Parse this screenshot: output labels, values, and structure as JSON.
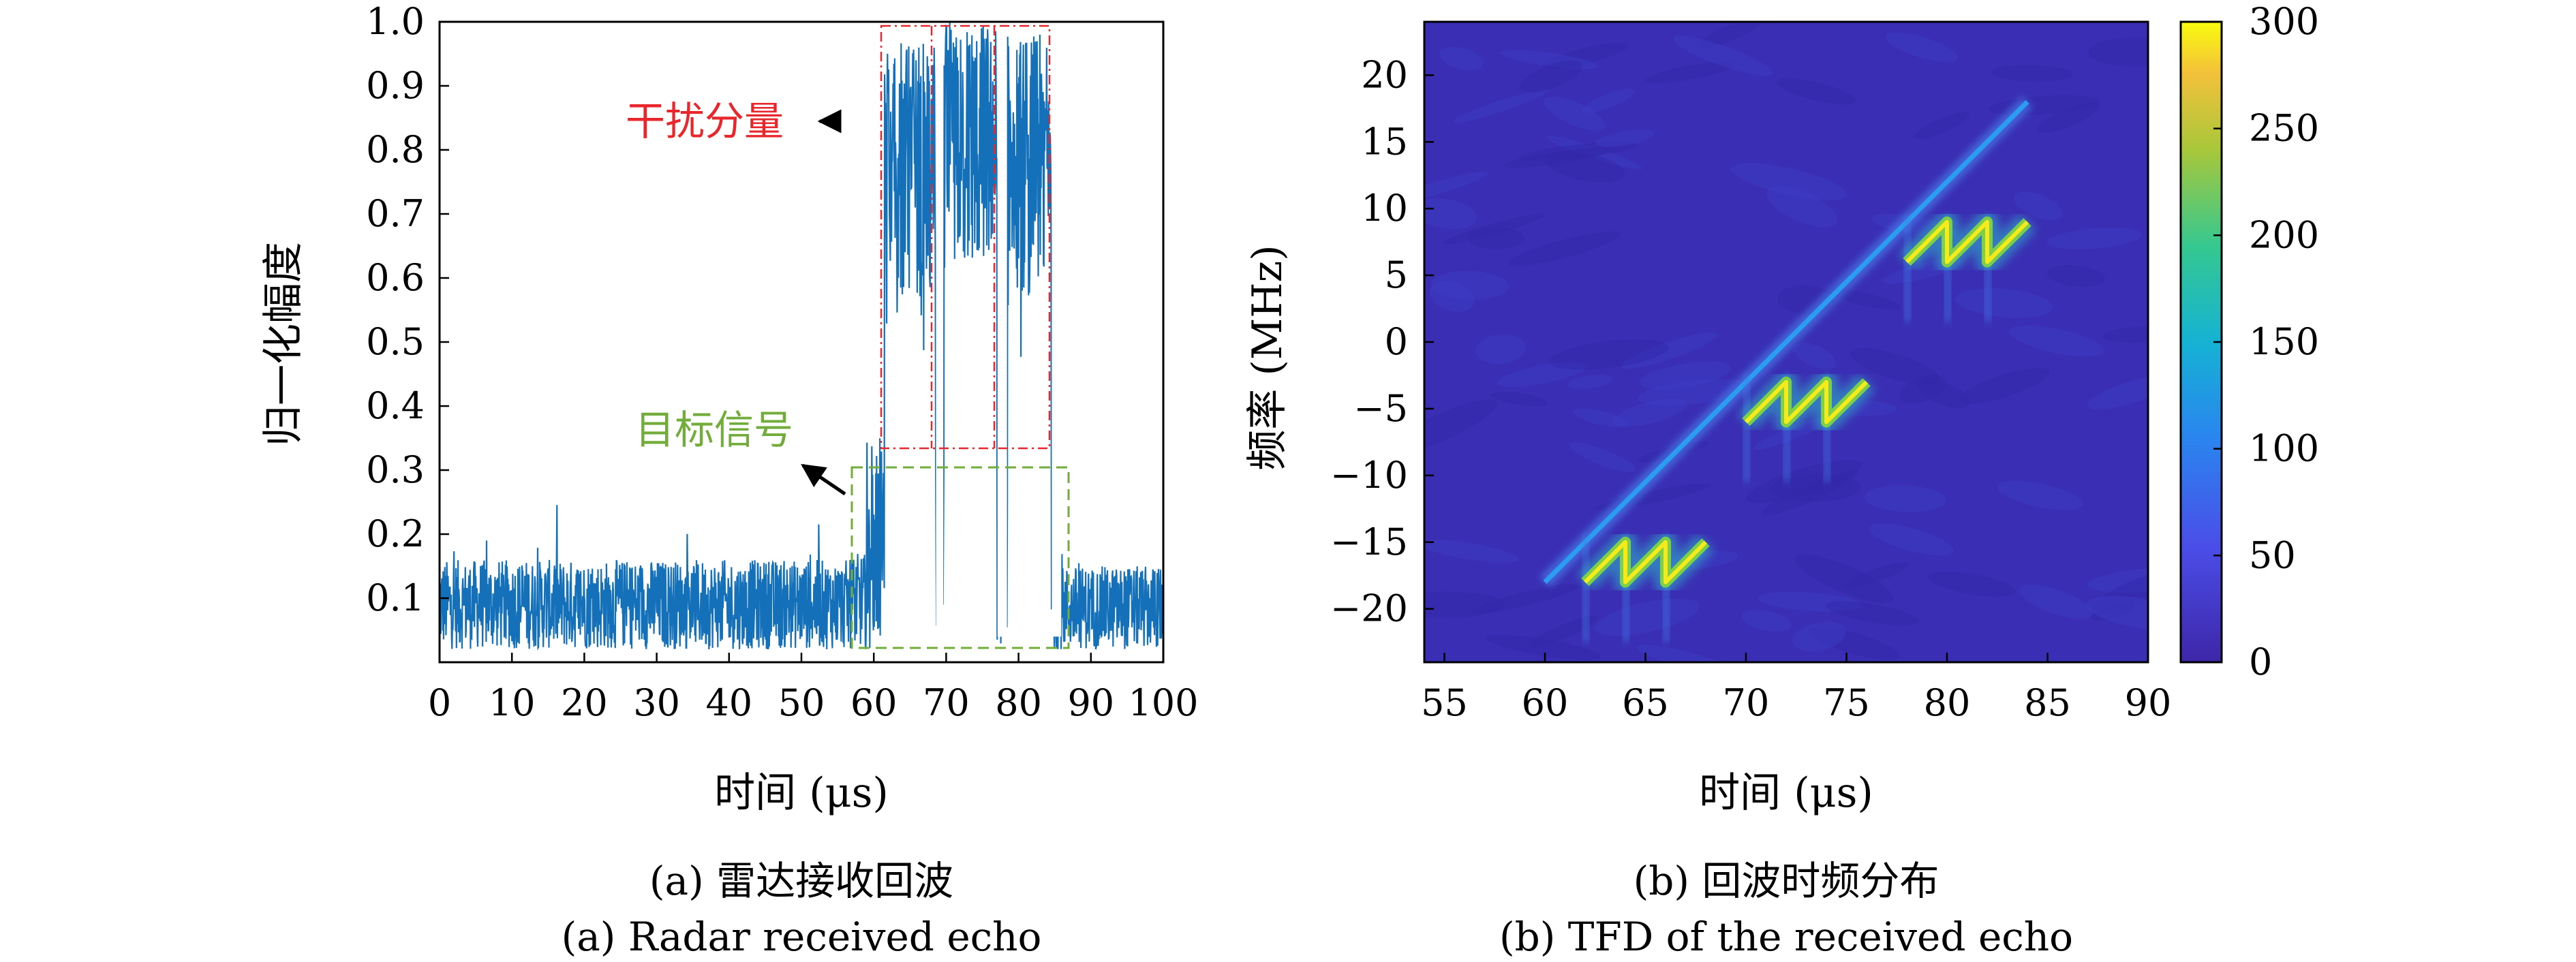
{
  "colors": {
    "signal": "#1470b8",
    "interference": "#e8262b",
    "target": "#72ac3a",
    "tfd_background": "#3a2fb4"
  },
  "chart_data": [
    {
      "type": "line",
      "xlabel": "时间 (μs)",
      "ylabel": "归一化幅度",
      "xlim": [
        0,
        100
      ],
      "ylim": [
        0,
        1.0
      ],
      "x_ticks": [
        "0",
        "10",
        "20",
        "30",
        "40",
        "50",
        "60",
        "70",
        "80",
        "90",
        "100"
      ],
      "y_ticks": [
        "0.1",
        "0.2",
        "0.3",
        "0.4",
        "0.5",
        "0.6",
        "0.7",
        "0.8",
        "0.9",
        "1.0"
      ],
      "grid": false,
      "noise_level": {
        "x_range": [
          0,
          57
        ],
        "mean": 0.1,
        "max": 0.26
      },
      "target_signal": {
        "x_range": [
          59,
          84
        ],
        "level": 0.25
      },
      "interference_pulses": [
        {
          "x_range": [
            61.5,
            68.5
          ],
          "level_range": [
            0.45,
            0.97
          ]
        },
        {
          "x_range": [
            69.7,
            77
          ],
          "level_range": [
            0.5,
            1.0
          ]
        },
        {
          "x_range": [
            78.5,
            84.5
          ],
          "level_range": [
            0.45,
            0.98
          ]
        }
      ],
      "trailing_noise": {
        "x_range": [
          86,
          100
        ],
        "mean": 0.1,
        "max": 0.21
      },
      "annotations": [
        {
          "text": "干扰分量",
          "color": "interference",
          "box_x": [
            61,
            84.5
          ],
          "box_y": [
            0.335,
            1.0
          ]
        },
        {
          "text": "目标信号",
          "color": "target",
          "box_x": [
            57,
            87
          ],
          "box_y": [
            0.025,
            0.31
          ]
        }
      ],
      "caption_cn": "(a) 雷达接收回波",
      "caption_en": "(a) Radar received echo"
    },
    {
      "type": "heatmap",
      "xlabel": "时间 (μs)",
      "ylabel": "频率 (MHz)",
      "xlim": [
        54,
        90
      ],
      "ylim": [
        -24,
        24
      ],
      "x_ticks": [
        "55",
        "60",
        "65",
        "70",
        "75",
        "80",
        "85",
        "90"
      ],
      "y_ticks": [
        "20",
        "15",
        "10",
        "5",
        "0",
        "−5",
        "−10",
        "−15",
        "−20"
      ],
      "colorbar": {
        "range": [
          0,
          300
        ],
        "ticks": [
          "300",
          "250",
          "200",
          "150",
          "100",
          "50",
          "0"
        ]
      },
      "lfm_chirp": {
        "t": [
          60,
          84
        ],
        "f": [
          -18,
          18
        ],
        "intensity": 60
      },
      "interference_groups": [
        {
          "t": [
            62,
            68
          ],
          "f_start": -18,
          "slope": 1.5,
          "period": 2,
          "count": 3,
          "intensity": 300
        },
        {
          "t": [
            70,
            76
          ],
          "f_start": -6,
          "slope": 1.5,
          "period": 2,
          "count": 3,
          "intensity": 300
        },
        {
          "t": [
            78,
            84
          ],
          "f_start": 6,
          "slope": 1.5,
          "period": 2,
          "count": 3,
          "intensity": 300
        }
      ],
      "caption_cn": "(b) 回波时频分布",
      "caption_en": "(b) TFD of the received echo"
    }
  ]
}
